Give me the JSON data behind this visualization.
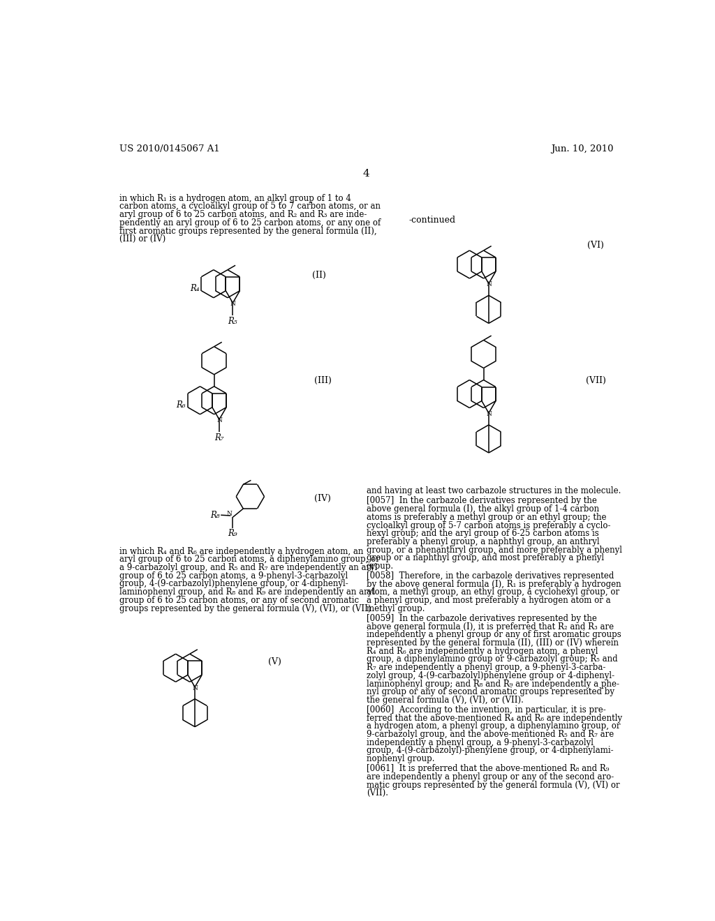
{
  "bg": "#ffffff",
  "header_left": "US 2010/0145067 A1",
  "header_right": "Jun. 10, 2010",
  "page_num": "4",
  "para1": [
    "in which R₁ is a hydrogen atom, an alkyl group of 1 to 4",
    "carbon atoms, a cycloalkyl group of 5 to 7 carbon atoms, or an",
    "aryl group of 6 to 25 carbon atoms, and R₂ and R₃ are inde-",
    "pendently an aryl group of 6 to 25 carbon atoms, or any one of",
    "first aromatic groups represented by the general formula (II),",
    "(III) or (IV)"
  ],
  "para2": [
    "in which R₄ and R₆ are independently a hydrogen atom, an",
    "aryl group of 6 to 25 carbon atoms, a diphenylamino group, or",
    "a 9-carbazolyl group, and R₅ and R₇ are independently an aryl",
    "group of 6 to 25 carbon atoms, a 9-phenyl-3-carbazolyl",
    "group, 4-(9-carbazolyl)phenylene group, or 4-diphenyl-",
    "laminophenyl group, and R₈ and R₉ are independently an aryl",
    "group of 6 to 25 carbon atoms, or any of second aromatic",
    "groups represented by the general formula (V), (VI), or (VII)"
  ],
  "right_paras": [
    [
      "and having at least two carbazole structures in the molecule."
    ],
    [
      "[0057]  In the carbazole derivatives represented by the",
      "above general formula (I), the alkyl group of 1-4 carbon",
      "atoms is preferably a methyl group or an ethyl group; the",
      "cycloalkyl group of 5-7 carbon atoms is preferably a cyclo-",
      "hexyl group; and the aryl group of 6-25 carbon atoms is",
      "preferably a phenyl group, a naphthyl group, an anthryl",
      "group, or a phenanthryl group, and more preferably a phenyl",
      "group or a naphthyl group, and most preferably a phenyl",
      "group."
    ],
    [
      "[0058]  Therefore, in the carbazole derivatives represented",
      "by the above general formula (I), R₁ is preferably a hydrogen",
      "atom, a methyl group, an ethyl group, a cyclohexyl group, or",
      "a phenyl group, and most preferably a hydrogen atom or a",
      "methyl group."
    ],
    [
      "[0059]  In the carbazole derivatives represented by the",
      "above general formula (I), it is preferred that R₂ and R₃ are",
      "independently a phenyl group or any of first aromatic groups",
      "represented by the general formula (II), (III) or (IV) wherein",
      "R₄ and R₆ are independently a hydrogen atom, a phenyl",
      "group, a diphenylamino group or 9-carbazolyl group; R₅ and",
      "R₇ are independently a phenyl group, a 9-phenyl-3-carba-",
      "zolyl group, 4-(9-carbazolyl)phenylene group or 4-diphenyl-",
      "laminophenyl group; and R₈ and R₉ are independently a phe-",
      "nyl group or any of second aromatic groups represented by",
      "the general formula (V), (VI), or (VII)."
    ],
    [
      "[0060]  According to the invention, in particular, it is pre-",
      "ferred that the above-mentioned R₄ and R₆ are independently",
      "a hydrogen atom, a phenyl group, a diphenylamino group, or",
      "9-carbazolyl group, and the above-mentioned R₅ and R₇ are",
      "independently a phenyl group, a 9-phenyl-3-carbazolyl",
      "group, 4-(9-carbazolyl)-phenylene group, or 4-diphenylami-",
      "nophenyl group."
    ],
    [
      "[0061]  It is preferred that the above-mentioned R₈ and R₉",
      "are independently a phenyl group or any of the second aro-",
      "matic groups represented by the general formula (V), (VI) or",
      "(VII)."
    ]
  ]
}
